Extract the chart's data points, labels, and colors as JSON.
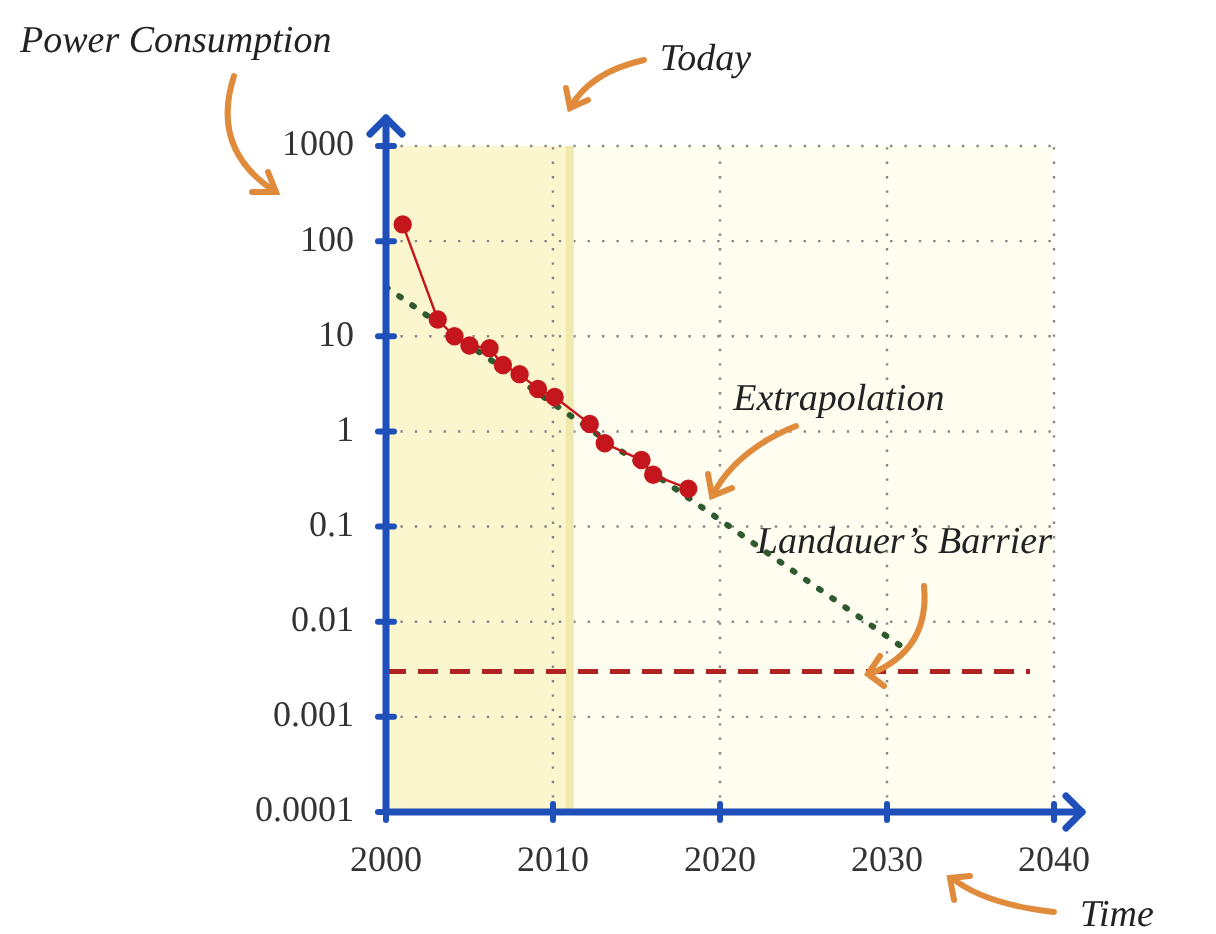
{
  "chart_data": {
    "type": "line",
    "xlabel": "Time",
    "ylabel": "Power Consumption",
    "log": "y",
    "xlim": [
      2000,
      2040
    ],
    "xticks": [
      2000,
      2010,
      2020,
      2030,
      2040
    ],
    "ylim": [
      0.0001,
      1000
    ],
    "yticks": [
      0.0001,
      0.001,
      0.01,
      0.1,
      1,
      10,
      100,
      1000
    ],
    "grid": true,
    "legend": false,
    "series": [
      {
        "color": "#c4161c",
        "marker": "circle",
        "line_style": "solid",
        "x": [
          2001,
          2003.1,
          2004.1,
          2005,
          2006.2,
          2007,
          2008,
          2009.1,
          2010.1,
          2012.2,
          2013.1,
          2015.3,
          2016,
          2018.1
        ],
        "values": [
          150,
          15,
          10,
          8,
          7.5,
          5,
          4,
          2.8,
          2.3,
          1.2,
          0.75,
          0.5,
          0.35,
          0.25
        ]
      },
      {
        "color": "#2f5a2f",
        "marker": "none",
        "line_style": "dotted",
        "x": [
          2000,
          2031.2
        ],
        "values": [
          33,
          0.005
        ]
      }
    ],
    "ref_lines": [
      {
        "axis": "x",
        "value": 2011,
        "label": "Today",
        "color": "#f0e9ad",
        "line_style": "solid"
      },
      {
        "axis": "y",
        "value": 0.003,
        "label": "Landauer’s Barrier",
        "color": "#b22222",
        "line_style": "dashed"
      }
    ],
    "bands": [
      {
        "axis": "x",
        "from": 2000,
        "to": 2011,
        "color": "#fcf6cf"
      }
    ],
    "annotations": [
      {
        "text": "Extrapolation",
        "x": 2019,
        "y": 0.22
      }
    ]
  }
}
